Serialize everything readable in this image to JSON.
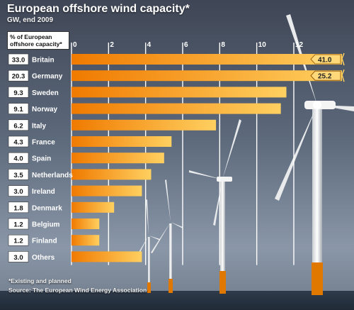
{
  "header": {
    "title": "European offshore wind capacity*",
    "subtitle": "GW, end 2009",
    "share_column_label": "% of European offshore capacity*"
  },
  "footer": {
    "footnote": "*Existing and planned",
    "source": "Source: The European Wind Energy Association"
  },
  "colors": {
    "bar_light": "#ffd060",
    "bar_dark": "#f07a00",
    "gridline": "#ffffff",
    "share_box_bg": "#ffffff"
  },
  "chart_data": {
    "type": "bar",
    "orientation": "horizontal",
    "title": "European offshore wind capacity*",
    "subtitle": "GW, end 2009",
    "xlim": [
      0,
      14.6
    ],
    "xticks": [
      0,
      2,
      4,
      6,
      8,
      10,
      12
    ],
    "grid": true,
    "categories": [
      "Britain",
      "Germany",
      "Sweden",
      "Norway",
      "Italy",
      "France",
      "Spain",
      "Netherlands",
      "Ireland",
      "Denmark",
      "Belgium",
      "Finland",
      "Others"
    ],
    "values": [
      41.0,
      25.2,
      11.6,
      11.3,
      7.8,
      5.4,
      5.0,
      4.3,
      3.8,
      2.3,
      1.5,
      1.5,
      3.8
    ],
    "share_percent": [
      "33.0",
      "20.3",
      "9.3",
      "9.1",
      "6.2",
      "4.3",
      "4.0",
      "3.5",
      "3.0",
      "1.8",
      "1.2",
      "1.2",
      "3.0"
    ],
    "value_labels": [
      "41.0",
      "25.2",
      "",
      "",
      "",
      "",
      "",
      "",
      "",
      "",
      "",
      "",
      ""
    ]
  }
}
